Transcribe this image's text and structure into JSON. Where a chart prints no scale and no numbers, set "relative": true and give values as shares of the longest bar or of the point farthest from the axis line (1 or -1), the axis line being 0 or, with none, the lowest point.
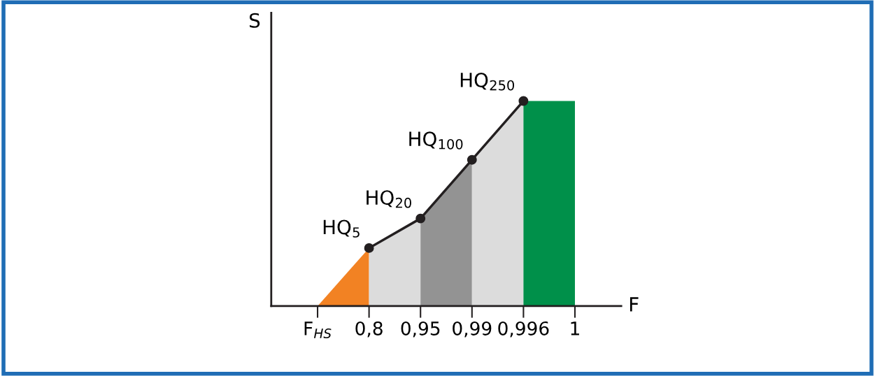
{
  "chart_data": {
    "type": "area",
    "relative": true,
    "xlabel": "F",
    "ylabel": "S",
    "categories": [
      "F$_{HS}$",
      "0,8",
      "0,95",
      "0,99",
      "0,996",
      "1"
    ],
    "series": [
      {
        "color": "#f28223",
        "values": [
          0,
          0.283,
          null,
          null,
          null,
          null
        ]
      },
      {
        "color": "#dcdcdc",
        "values": [
          null,
          0.283,
          0.427,
          null,
          null,
          null
        ]
      },
      {
        "color": "#939393",
        "values": [
          null,
          null,
          0.427,
          0.713,
          null,
          null
        ]
      },
      {
        "color": "#dcdcdc",
        "values": [
          null,
          null,
          null,
          0.713,
          1,
          null
        ]
      },
      {
        "color": "#00904a",
        "values": [
          null,
          null,
          null,
          null,
          1,
          1
        ]
      },
      {
        "type": "line",
        "color": "#231f20",
        "marker": "circle",
        "values": [
          null,
          0.283,
          0.427,
          0.713,
          1,
          null
        ]
      }
    ],
    "annotations": [
      {
        "text": "HQ$_{5}$",
        "x": "0,8",
        "y": 0.283
      },
      {
        "text": "HQ$_{20}$",
        "x": "0,95",
        "y": 0.427
      },
      {
        "text": "HQ$_{100}$",
        "x": "0,99",
        "y": 0.713
      },
      {
        "text": "HQ$_{250}$",
        "x": "0,996",
        "y": 1
      }
    ],
    "grid": false,
    "legend": false
  }
}
